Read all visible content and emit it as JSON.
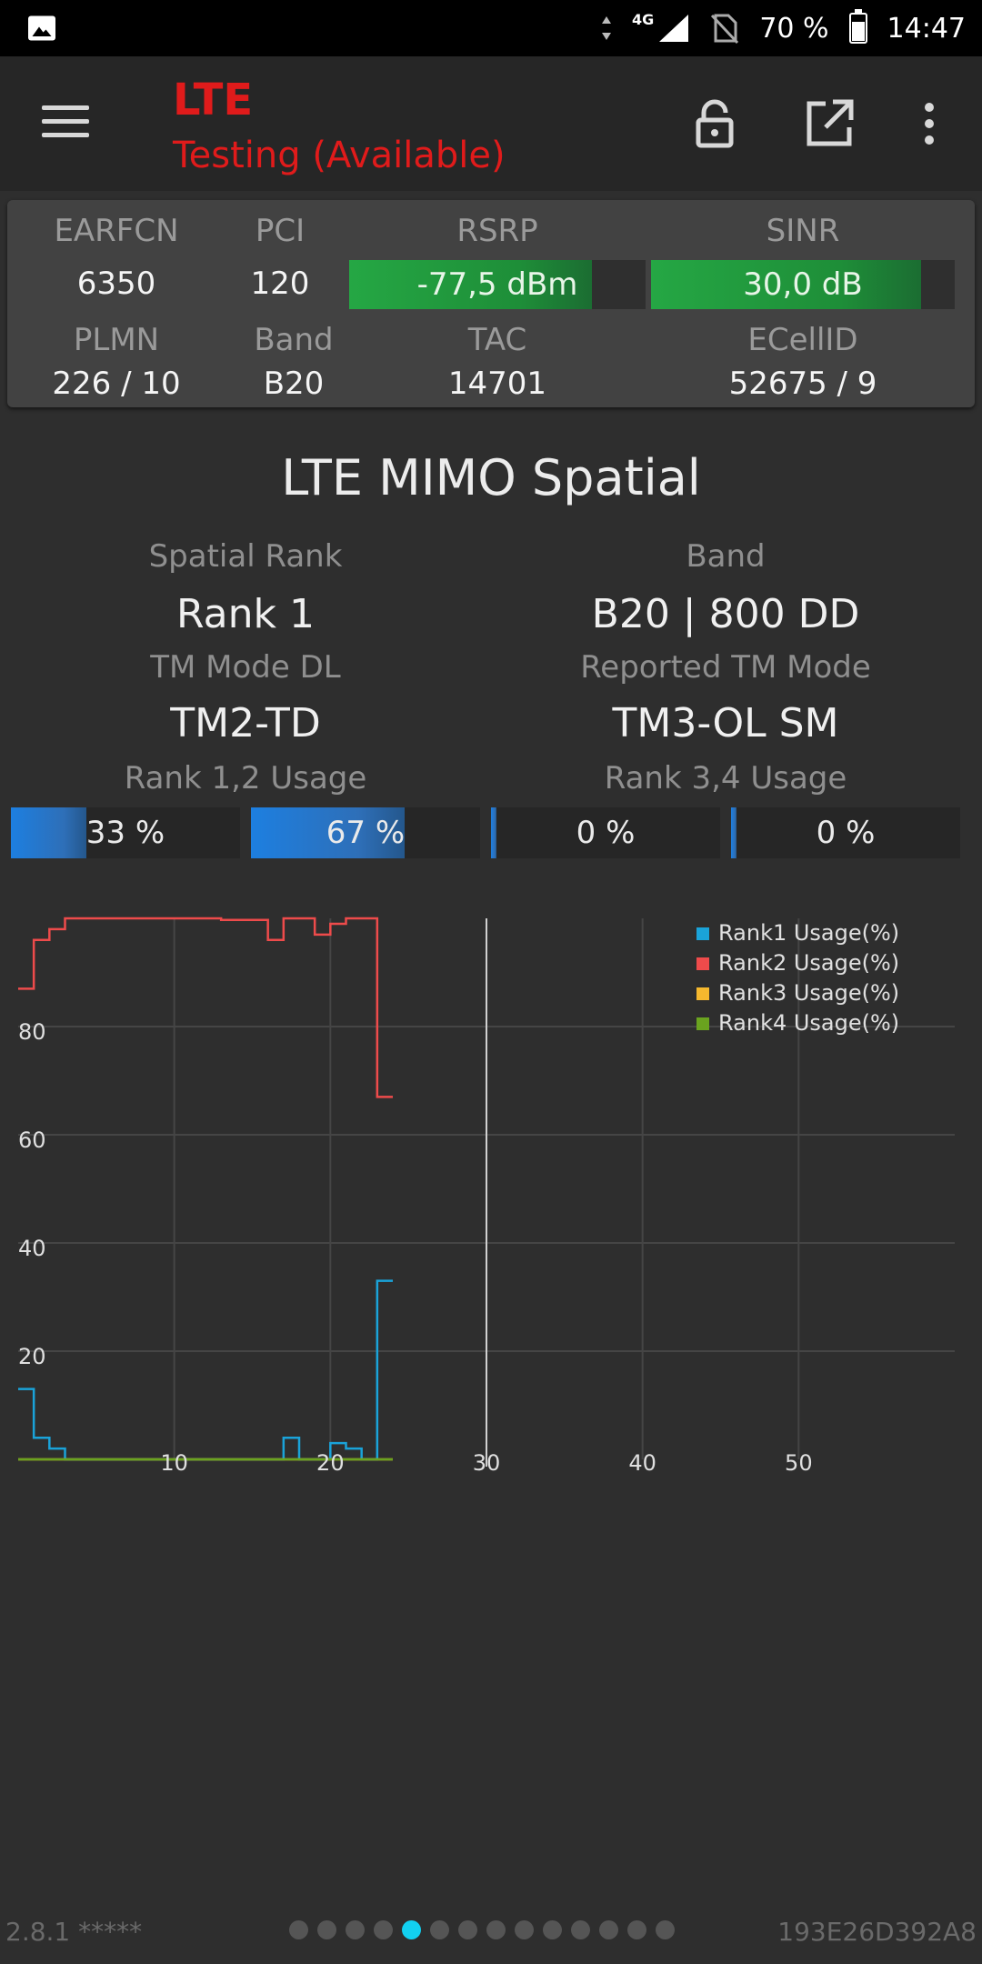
{
  "status_bar": {
    "network": "4G",
    "battery": "70 %",
    "battery_level": 0.7,
    "time": "14:47",
    "icons": [
      "image-icon",
      "data-arrows-icon",
      "signal-icon",
      "no-sim-icon",
      "battery-icon"
    ]
  },
  "toolbar": {
    "title": "LTE",
    "subtitle": "Testing (Available)",
    "title_color": "#e01b1b",
    "icons": [
      "menu-icon",
      "lock-open-icon",
      "open-external-icon",
      "more-vert-icon"
    ]
  },
  "cell_info": {
    "earfcn_label": "EARFCN",
    "earfcn": "6350",
    "pci_label": "PCI",
    "pci": "120",
    "rsrp_label": "RSRP",
    "rsrp": "-77,5 dBm",
    "rsrp_fill": 0.82,
    "sinr_label": "SINR",
    "sinr": "30,0 dB",
    "sinr_fill": 0.89,
    "plmn_label": "PLMN",
    "plmn": "226 / 10",
    "band_label": "Band",
    "band": "B20",
    "tac_label": "TAC",
    "tac": "14701",
    "ecellid_label": "ECellID",
    "ecellid": "52675 / 9",
    "meter_color": "#25a744"
  },
  "mimo": {
    "title": "LTE MIMO Spatial",
    "spatial_rank_label": "Spatial Rank",
    "spatial_rank": "Rank 1",
    "band_label": "Band",
    "band": "B20 | 800 DD",
    "tm_mode_label": "TM Mode DL",
    "tm_mode": "TM2-TD",
    "reported_tm_label": "Reported TM Mode",
    "reported_tm": "TM3-OL SM",
    "rank12_label": "Rank 1,2 Usage",
    "rank34_label": "Rank 3,4 Usage",
    "usage": [
      {
        "text": "33 %",
        "value": 33
      },
      {
        "text": "67 %",
        "value": 67
      },
      {
        "text": "0 %",
        "value": 0
      },
      {
        "text": "0 %",
        "value": 0
      }
    ],
    "bar_color": "#1d7fe0"
  },
  "chart_data": {
    "type": "line",
    "xlim": [
      0,
      60
    ],
    "ylim": [
      0,
      100
    ],
    "x_ticks": [
      10,
      20,
      30,
      40,
      50
    ],
    "y_ticks": [
      20,
      40,
      60,
      80
    ],
    "vertical_marker_x": 30,
    "grid": true,
    "legend_position": "top-right",
    "series": [
      {
        "name": "Rank1 Usage(%)",
        "color": "#1aa3d9",
        "x": [
          0,
          1,
          2,
          3,
          16,
          17,
          18,
          19,
          20,
          21,
          22,
          23,
          24
        ],
        "y": [
          13,
          4,
          2,
          0,
          0,
          4,
          0,
          0,
          3,
          2,
          0,
          33,
          33
        ]
      },
      {
        "name": "Rank2 Usage(%)",
        "color": "#ee4b4b",
        "x": [
          0,
          1,
          2,
          3,
          12,
          13,
          16,
          17,
          19,
          20,
          21,
          22,
          23,
          24
        ],
        "y": [
          87,
          96,
          98,
          100,
          100,
          99.7,
          96,
          100,
          97,
          99,
          100,
          100,
          67,
          67
        ]
      },
      {
        "name": "Rank3 Usage(%)",
        "color": "#f5b82e",
        "x": [
          0,
          24
        ],
        "y": [
          0,
          0
        ]
      },
      {
        "name": "Rank4 Usage(%)",
        "color": "#6aa31f",
        "x": [
          0,
          24
        ],
        "y": [
          0,
          0
        ]
      }
    ]
  },
  "footer": {
    "version": "2.8.1 *****",
    "device_id": "193E26D392A8",
    "page_count": 14,
    "active_page": 5
  }
}
